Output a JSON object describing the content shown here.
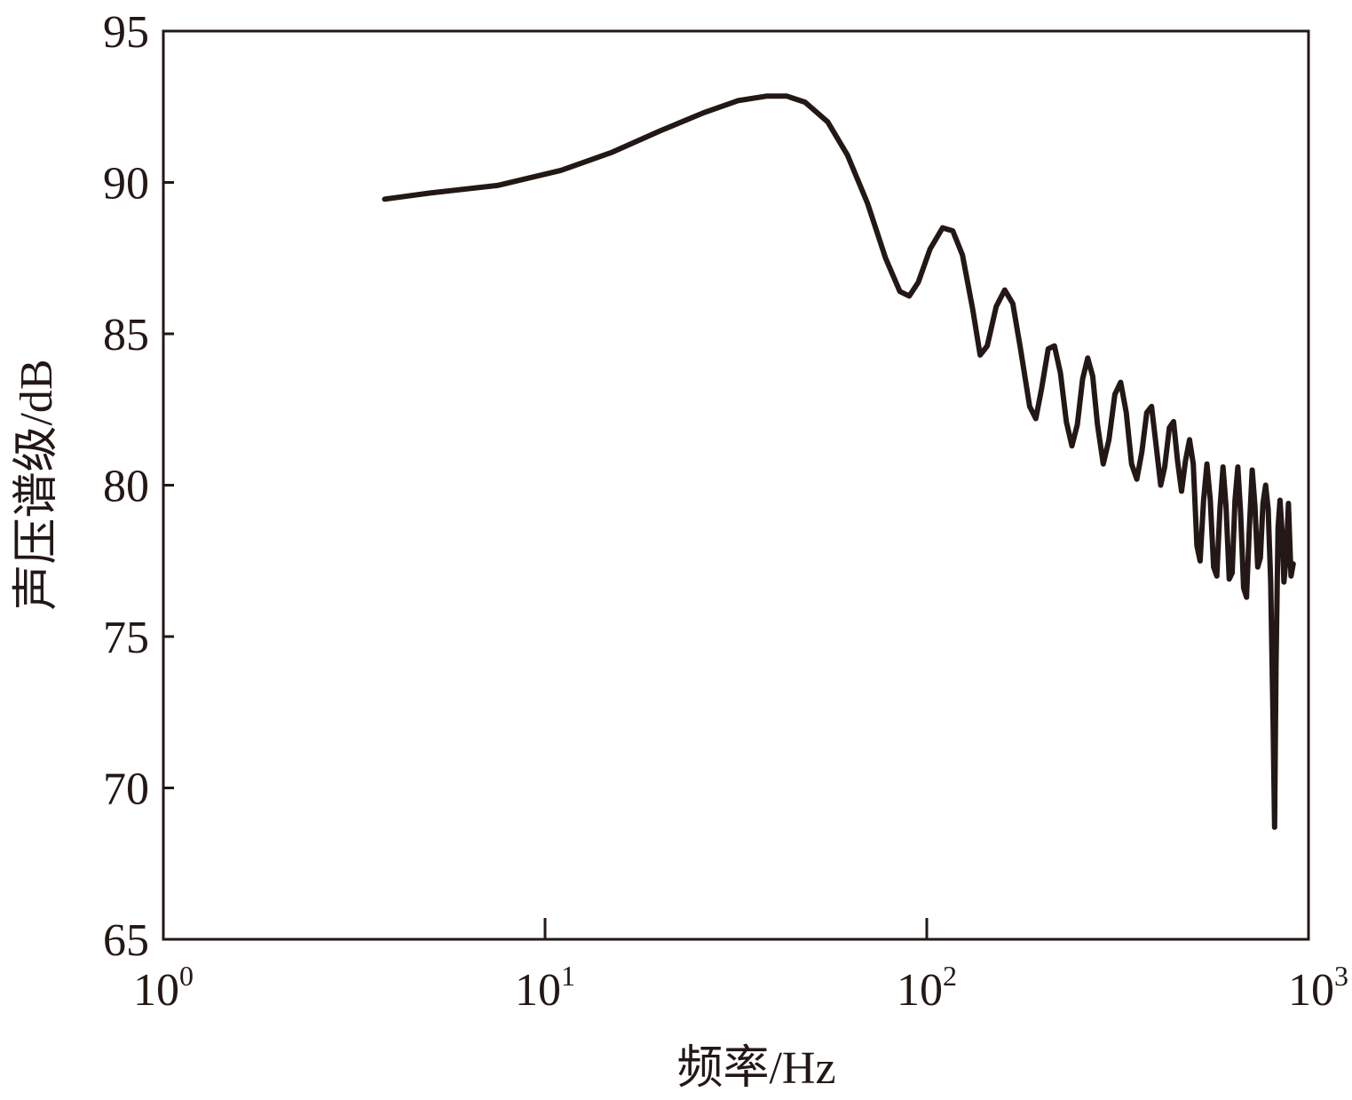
{
  "chart_data": {
    "type": "line",
    "title": "",
    "xlabel": "频率/Hz",
    "ylabel": "声压谱级/dB",
    "x_scale": "log",
    "xlim": [
      1,
      1000
    ],
    "ylim": [
      65,
      95
    ],
    "x_ticks": [
      {
        "value": 1,
        "base": "10",
        "exp": "0"
      },
      {
        "value": 10,
        "base": "10",
        "exp": "1"
      },
      {
        "value": 100,
        "base": "10",
        "exp": "2"
      },
      {
        "value": 1000,
        "base": "10",
        "exp": "3"
      }
    ],
    "y_ticks": [
      {
        "value": 65,
        "label": "65"
      },
      {
        "value": 70,
        "label": "70"
      },
      {
        "value": 75,
        "label": "75"
      },
      {
        "value": 80,
        "label": "80"
      },
      {
        "value": 85,
        "label": "85"
      },
      {
        "value": 90,
        "label": "90"
      },
      {
        "value": 95,
        "label": "95"
      }
    ],
    "grid": false,
    "line_color": "#231815",
    "series": [
      {
        "values": [
          [
            3.8,
            89.45
          ],
          [
            5,
            89.65
          ],
          [
            7.5,
            89.9
          ],
          [
            11,
            90.4
          ],
          [
            15,
            91.0
          ],
          [
            20,
            91.7
          ],
          [
            26,
            92.3
          ],
          [
            32,
            92.7
          ],
          [
            38,
            92.85
          ],
          [
            43,
            92.85
          ],
          [
            48,
            92.65
          ],
          [
            55,
            92.0
          ],
          [
            62,
            90.9
          ],
          [
            70,
            89.3
          ],
          [
            78,
            87.5
          ],
          [
            85,
            86.4
          ],
          [
            90,
            86.25
          ],
          [
            95,
            86.7
          ],
          [
            102,
            87.8
          ],
          [
            110,
            88.5
          ],
          [
            117,
            88.4
          ],
          [
            124,
            87.6
          ],
          [
            132,
            85.8
          ],
          [
            138,
            84.3
          ],
          [
            144,
            84.6
          ],
          [
            152,
            85.9
          ],
          [
            160,
            86.45
          ],
          [
            168,
            86.0
          ],
          [
            176,
            84.5
          ],
          [
            186,
            82.6
          ],
          [
            193,
            82.2
          ],
          [
            200,
            83.2
          ],
          [
            208,
            84.5
          ],
          [
            216,
            84.6
          ],
          [
            224,
            83.7
          ],
          [
            232,
            82.1
          ],
          [
            240,
            81.3
          ],
          [
            248,
            82.0
          ],
          [
            256,
            83.5
          ],
          [
            264,
            84.2
          ],
          [
            272,
            83.6
          ],
          [
            280,
            82.0
          ],
          [
            290,
            80.7
          ],
          [
            300,
            81.5
          ],
          [
            311,
            83.0
          ],
          [
            322,
            83.4
          ],
          [
            333,
            82.4
          ],
          [
            344,
            80.7
          ],
          [
            355,
            80.2
          ],
          [
            366,
            81.1
          ],
          [
            377,
            82.4
          ],
          [
            388,
            82.6
          ],
          [
            399,
            81.3
          ],
          [
            410,
            80.0
          ],
          [
            420,
            80.6
          ],
          [
            432,
            81.9
          ],
          [
            443,
            82.1
          ],
          [
            454,
            80.8
          ],
          [
            465,
            79.8
          ],
          [
            476,
            80.8
          ],
          [
            488,
            81.5
          ],
          [
            499,
            80.7
          ],
          [
            510,
            78.0
          ],
          [
            520,
            77.5
          ],
          [
            531,
            79.5
          ],
          [
            542,
            80.7
          ],
          [
            553,
            79.5
          ],
          [
            564,
            77.3
          ],
          [
            575,
            77.0
          ],
          [
            586,
            79.2
          ],
          [
            597,
            80.6
          ],
          [
            608,
            79.3
          ],
          [
            620,
            76.9
          ],
          [
            631,
            77.1
          ],
          [
            642,
            79.5
          ],
          [
            653,
            80.6
          ],
          [
            664,
            79.1
          ],
          [
            676,
            76.6
          ],
          [
            688,
            76.3
          ],
          [
            700,
            78.6
          ],
          [
            712,
            80.5
          ],
          [
            724,
            79.3
          ],
          [
            736,
            77.3
          ],
          [
            748,
            77.6
          ],
          [
            760,
            79.4
          ],
          [
            772,
            80.0
          ],
          [
            784,
            79.2
          ],
          [
            796,
            76.8
          ],
          [
            808,
            72.0
          ],
          [
            815,
            68.7
          ],
          [
            822,
            74.0
          ],
          [
            832,
            78.6
          ],
          [
            842,
            79.5
          ],
          [
            852,
            78.5
          ],
          [
            862,
            76.8
          ],
          [
            874,
            77.6
          ],
          [
            886,
            79.4
          ],
          [
            900,
            77.0
          ],
          [
            912,
            77.4
          ]
        ]
      }
    ]
  }
}
